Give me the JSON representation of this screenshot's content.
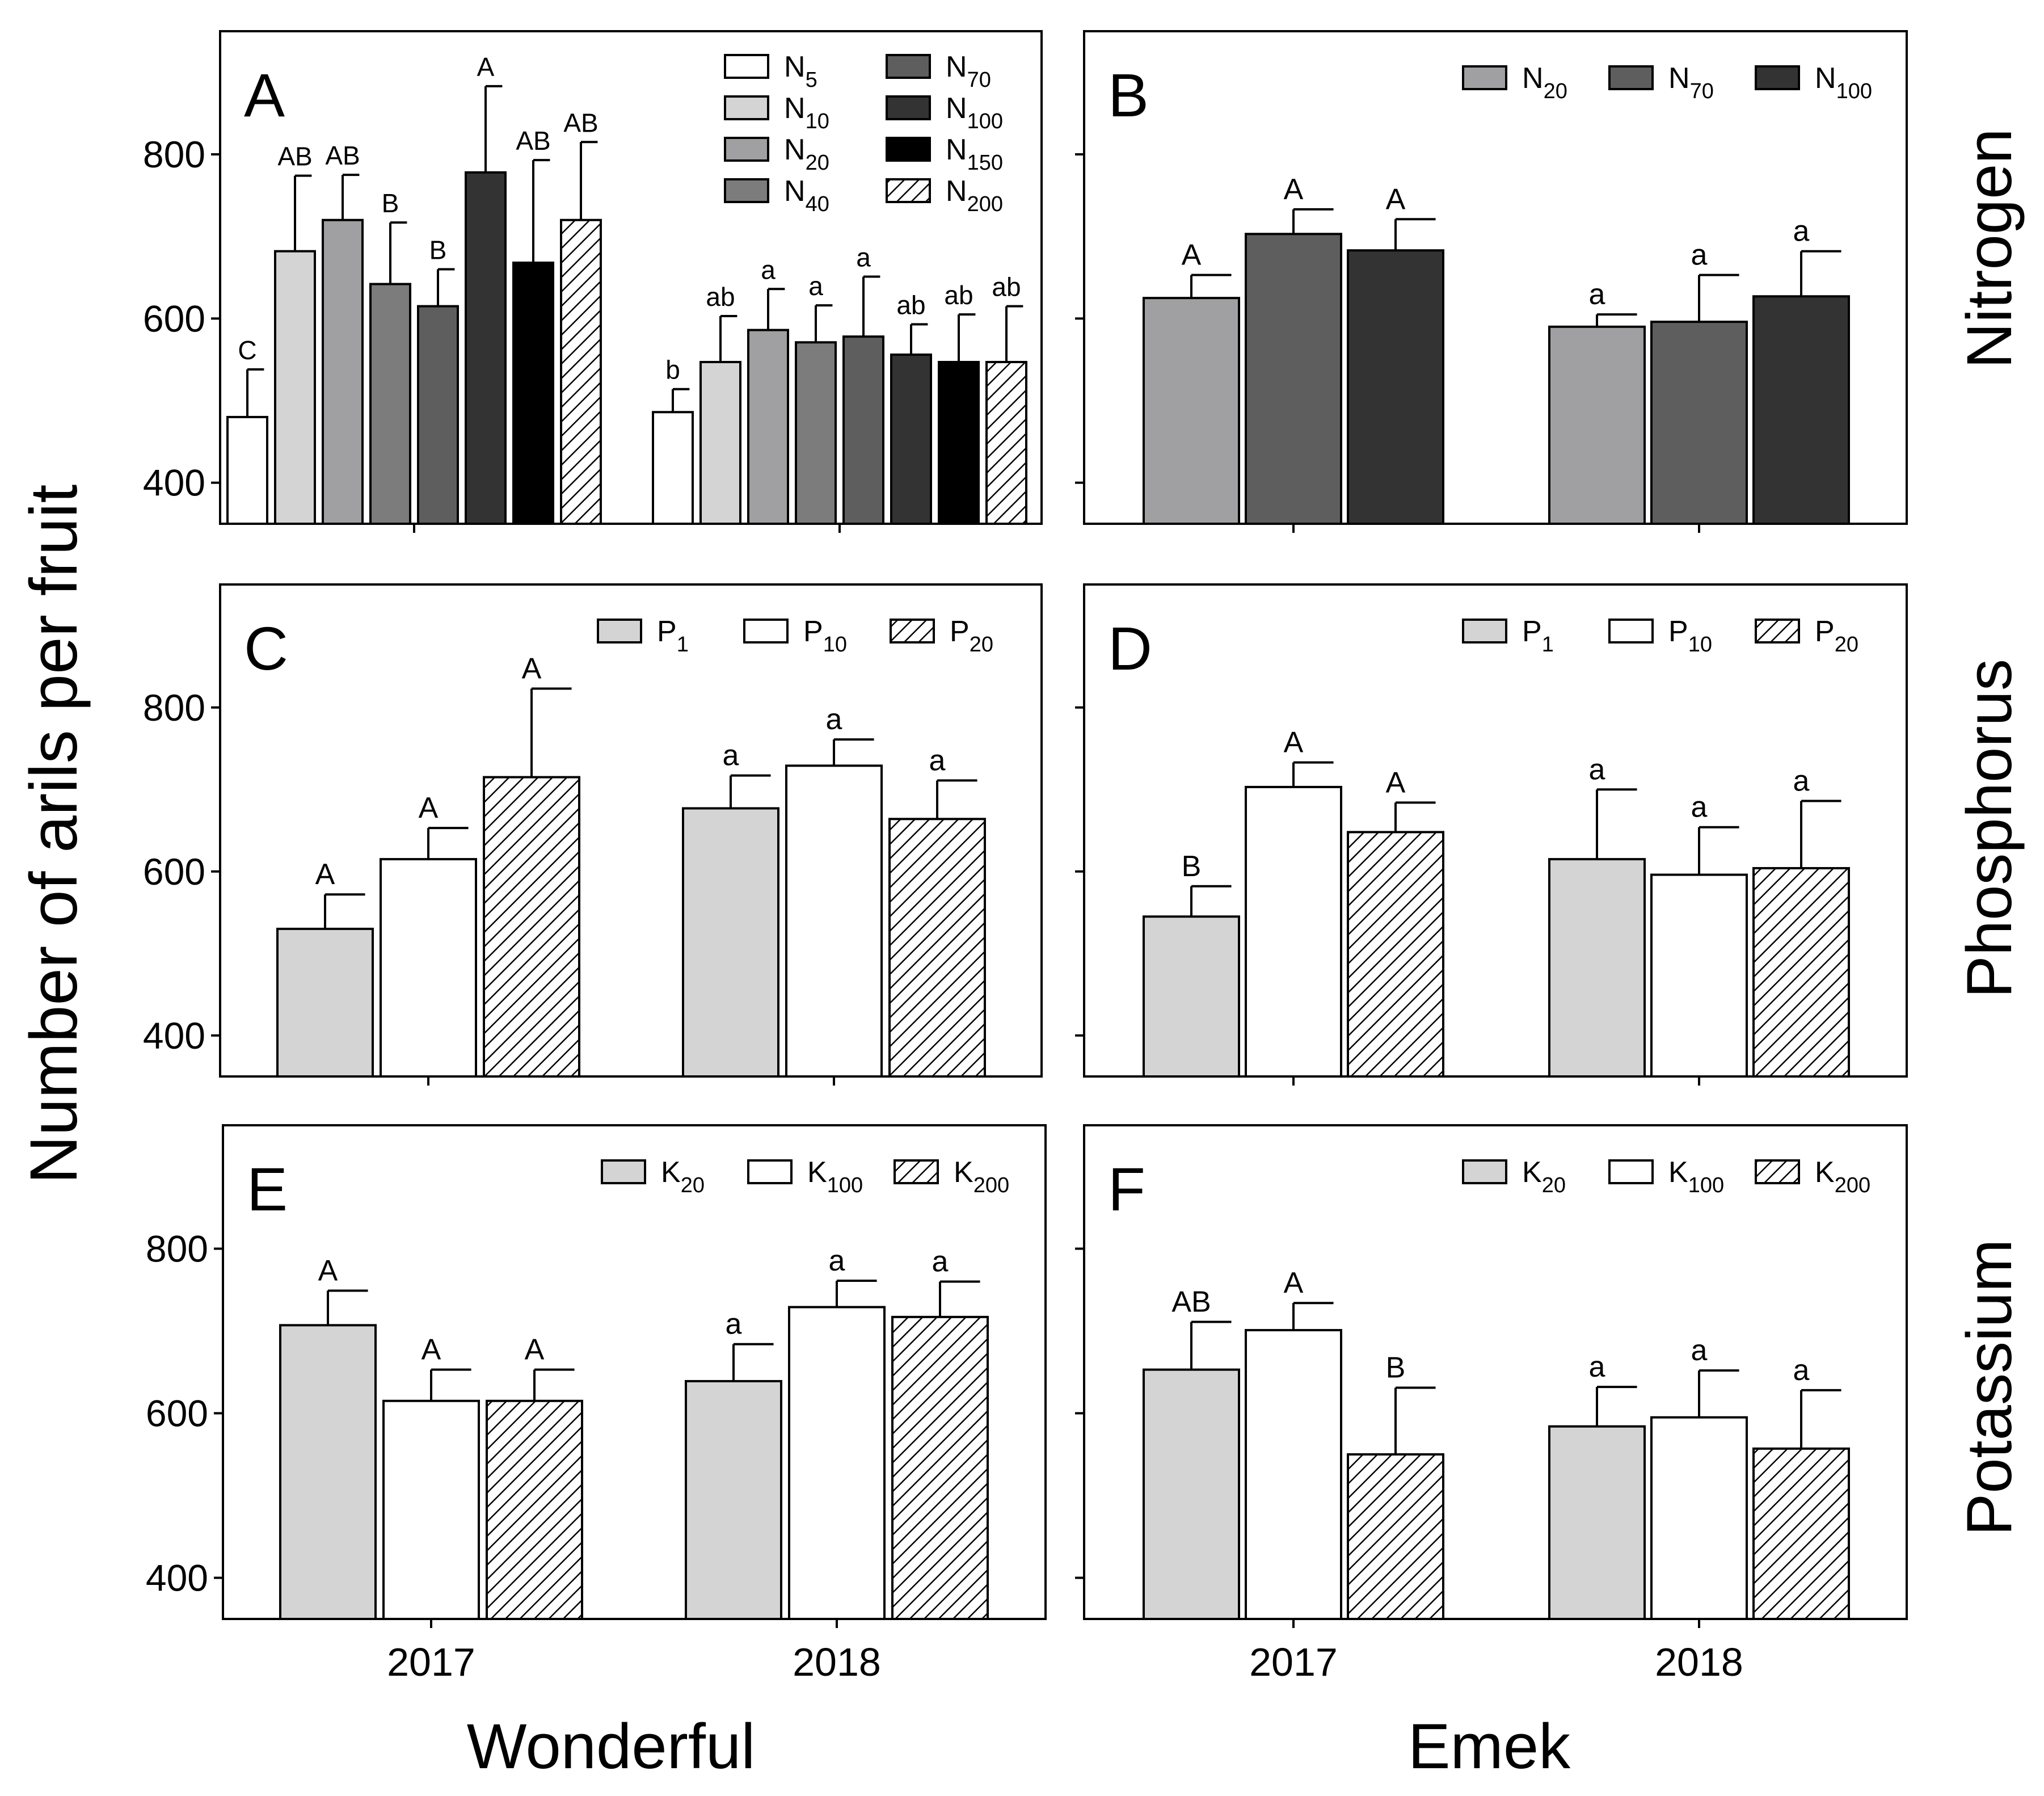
{
  "chart_data": {
    "type": "bar",
    "y_axis_label": "Number of arils per fruit",
    "x_labels": [
      "2017",
      "2018"
    ],
    "cultivars": [
      "Wonderful",
      "Emek"
    ],
    "rows": [
      "Nitrogen",
      "Phosphorus",
      "Potassium"
    ],
    "y_ticks": [
      400,
      600,
      800
    ],
    "ylim": [
      350,
      950
    ],
    "colors": {
      "c_white": "#ffffff",
      "c_light": "#d4d4d4",
      "c_mid": "#a0a0a3",
      "c_n40": "#7c7c7c",
      "c_n70": "#5e5e5e",
      "c_n100": "#333333",
      "c_n150": "#000000"
    },
    "panels": [
      {
        "id": "A",
        "cultivar": "Wonderful",
        "nutrient": "Nitrogen",
        "legend_cols": 2,
        "series": [
          {
            "name": "N5",
            "base": "N",
            "sub": "5",
            "fill": "c_white",
            "hatch": false
          },
          {
            "name": "N10",
            "base": "N",
            "sub": "10",
            "fill": "c_light",
            "hatch": false
          },
          {
            "name": "N20",
            "base": "N",
            "sub": "20",
            "fill": "c_mid",
            "hatch": false
          },
          {
            "name": "N40",
            "base": "N",
            "sub": "40",
            "fill": "c_n40",
            "hatch": false
          },
          {
            "name": "N70",
            "base": "N",
            "sub": "70",
            "fill": "c_n70",
            "hatch": false
          },
          {
            "name": "N100",
            "base": "N",
            "sub": "100",
            "fill": "c_n100",
            "hatch": false
          },
          {
            "name": "N150",
            "base": "N",
            "sub": "150",
            "fill": "c_n150",
            "hatch": false
          },
          {
            "name": "N200",
            "base": "N",
            "sub": "200",
            "fill": "c_white",
            "hatch": true
          }
        ],
        "groups": [
          {
            "year": "2017",
            "values": [
              480,
              682,
              720,
              642,
              615,
              778,
              668,
              720
            ],
            "errors": [
              58,
              92,
              55,
              75,
              45,
              105,
              125,
              95
            ],
            "letters": [
              "C",
              "AB",
              "AB",
              "B",
              "B",
              "A",
              "AB",
              "AB"
            ]
          },
          {
            "year": "2018",
            "values": [
              486,
              547,
              586,
              571,
              578,
              556,
              547,
              547
            ],
            "errors": [
              28,
              56,
              50,
              45,
              73,
              37,
              58,
              68
            ],
            "letters": [
              "b",
              "ab",
              "a",
              "a",
              "a",
              "ab",
              "ab",
              "ab"
            ]
          }
        ]
      },
      {
        "id": "B",
        "cultivar": "Emek",
        "nutrient": "Nitrogen",
        "legend_cols": 3,
        "series": [
          {
            "name": "N20",
            "base": "N",
            "sub": "20",
            "fill": "c_mid",
            "hatch": false
          },
          {
            "name": "N70",
            "base": "N",
            "sub": "70",
            "fill": "c_n70",
            "hatch": false
          },
          {
            "name": "N100",
            "base": "N",
            "sub": "100",
            "fill": "c_n100",
            "hatch": false
          }
        ],
        "groups": [
          {
            "year": "2017",
            "values": [
              625,
              703,
              683
            ],
            "errors": [
              28,
              30,
              38
            ],
            "letters": [
              "A",
              "A",
              "A"
            ]
          },
          {
            "year": "2018",
            "values": [
              590,
              596,
              627
            ],
            "errors": [
              15,
              57,
              55
            ],
            "letters": [
              "a",
              "a",
              "a"
            ]
          }
        ]
      },
      {
        "id": "C",
        "cultivar": "Wonderful",
        "nutrient": "Phosphorus",
        "legend_cols": 3,
        "series": [
          {
            "name": "P1",
            "base": "P",
            "sub": "1",
            "fill": "c_light",
            "hatch": false
          },
          {
            "name": "P10",
            "base": "P",
            "sub": "10",
            "fill": "c_white",
            "hatch": false
          },
          {
            "name": "P20",
            "base": "P",
            "sub": "20",
            "fill": "c_white",
            "hatch": true
          }
        ],
        "groups": [
          {
            "year": "2017",
            "values": [
              530,
              615,
              715
            ],
            "errors": [
              42,
              38,
              108
            ],
            "letters": [
              "A",
              "A",
              "A"
            ]
          },
          {
            "year": "2018",
            "values": [
              677,
              729,
              664
            ],
            "errors": [
              40,
              32,
              47
            ],
            "letters": [
              "a",
              "a",
              "a"
            ]
          }
        ]
      },
      {
        "id": "D",
        "cultivar": "Emek",
        "nutrient": "Phosphorus",
        "legend_cols": 3,
        "series": [
          {
            "name": "P1",
            "base": "P",
            "sub": "1",
            "fill": "c_light",
            "hatch": false
          },
          {
            "name": "P10",
            "base": "P",
            "sub": "10",
            "fill": "c_white",
            "hatch": false
          },
          {
            "name": "P20",
            "base": "P",
            "sub": "20",
            "fill": "c_white",
            "hatch": true
          }
        ],
        "groups": [
          {
            "year": "2017",
            "values": [
              545,
              703,
              648
            ],
            "errors": [
              37,
              30,
              36
            ],
            "letters": [
              "B",
              "A",
              "A"
            ]
          },
          {
            "year": "2018",
            "values": [
              615,
              596,
              604
            ],
            "errors": [
              85,
              58,
              82
            ],
            "letters": [
              "a",
              "a",
              "a"
            ]
          }
        ]
      },
      {
        "id": "E",
        "cultivar": "Wonderful",
        "nutrient": "Potassium",
        "legend_cols": 3,
        "series": [
          {
            "name": "K20",
            "base": "K",
            "sub": "20",
            "fill": "c_light",
            "hatch": false
          },
          {
            "name": "K100",
            "base": "K",
            "sub": "100",
            "fill": "c_white",
            "hatch": false
          },
          {
            "name": "K200",
            "base": "K",
            "sub": "200",
            "fill": "c_white",
            "hatch": true
          }
        ],
        "groups": [
          {
            "year": "2017",
            "values": [
              707,
              615,
              615
            ],
            "errors": [
              42,
              38,
              38
            ],
            "letters": [
              "A",
              "A",
              "A"
            ]
          },
          {
            "year": "2018",
            "values": [
              639,
              729,
              717
            ],
            "errors": [
              45,
              32,
              43
            ],
            "letters": [
              "a",
              "a",
              "a"
            ]
          }
        ]
      },
      {
        "id": "F",
        "cultivar": "Emek",
        "nutrient": "Potassium",
        "legend_cols": 3,
        "series": [
          {
            "name": "K20",
            "base": "K",
            "sub": "20",
            "fill": "c_light",
            "hatch": false
          },
          {
            "name": "K100",
            "base": "K",
            "sub": "100",
            "fill": "c_white",
            "hatch": false
          },
          {
            "name": "K200",
            "base": "K",
            "sub": "200",
            "fill": "c_white",
            "hatch": true
          }
        ],
        "groups": [
          {
            "year": "2017",
            "values": [
              653,
              701,
              550
            ],
            "errors": [
              58,
              33,
              81
            ],
            "letters": [
              "AB",
              "A",
              "B"
            ]
          },
          {
            "year": "2018",
            "values": [
              584,
              595,
              557
            ],
            "errors": [
              48,
              57,
              71
            ],
            "letters": [
              "a",
              "a",
              "a"
            ]
          }
        ]
      }
    ]
  }
}
